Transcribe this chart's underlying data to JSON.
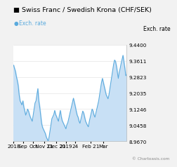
{
  "title": "Swiss Franc / Swedish Krona (CHF/SEK)",
  "legend_label": "Exch. rate",
  "ylabel": "Exch. rate",
  "copyright": "© Chartoasis.com",
  "y_ticks": [
    8.967,
    9.0458,
    9.1246,
    9.2035,
    9.2823,
    9.3611,
    9.44
  ],
  "ylim": [
    8.967,
    9.44
  ],
  "x_tick_labels": [
    "2018",
    "Sep",
    "Oct",
    "Nov 21",
    "Dec 21",
    "2019",
    "24",
    "Feb 21",
    "Mar"
  ],
  "x_tick_positions": [
    0.0,
    0.083,
    0.175,
    0.27,
    0.38,
    0.465,
    0.545,
    0.68,
    0.79
  ],
  "line_color": "#5aaadd",
  "fill_color": "#c8e0f5",
  "bg_color": "#f2f2f2",
  "plot_bg": "#ffffff",
  "border_color": "#bbbbbb",
  "grid_color": "#dddddd",
  "title_fontsize": 6.8,
  "tick_fontsize": 5.2,
  "legend_fontsize": 5.5,
  "ylabel_fontsize": 5.5,
  "series": [
    9.34,
    9.325,
    9.31,
    9.285,
    9.265,
    9.24,
    9.195,
    9.165,
    9.155,
    9.145,
    9.165,
    9.135,
    9.115,
    9.095,
    9.108,
    9.125,
    9.115,
    9.098,
    9.085,
    9.075,
    9.065,
    9.095,
    9.125,
    9.155,
    9.165,
    9.195,
    9.225,
    9.165,
    9.135,
    9.095,
    9.055,
    9.035,
    9.025,
    9.015,
    9.005,
    8.988,
    8.978,
    8.968,
    8.988,
    9.018,
    9.048,
    9.078,
    9.088,
    9.098,
    9.118,
    9.098,
    9.088,
    9.075,
    9.065,
    9.095,
    9.118,
    9.088,
    9.068,
    9.058,
    9.048,
    9.038,
    9.028,
    9.048,
    9.058,
    9.078,
    9.098,
    9.118,
    9.138,
    9.158,
    9.178,
    9.158,
    9.138,
    9.115,
    9.095,
    9.085,
    9.065,
    9.055,
    9.075,
    9.095,
    9.115,
    9.105,
    9.085,
    9.065,
    9.055,
    9.045,
    9.038,
    9.065,
    9.085,
    9.105,
    9.125,
    9.115,
    9.095,
    9.085,
    9.105,
    9.125,
    9.145,
    9.165,
    9.195,
    9.225,
    9.255,
    9.275,
    9.255,
    9.235,
    9.215,
    9.195,
    9.185,
    9.175,
    9.195,
    9.225,
    9.255,
    9.285,
    9.315,
    9.345,
    9.365,
    9.358,
    9.335,
    9.305,
    9.275,
    9.305,
    9.325,
    9.348,
    9.368,
    9.388,
    9.355,
    9.325,
    9.288,
    9.295
  ]
}
